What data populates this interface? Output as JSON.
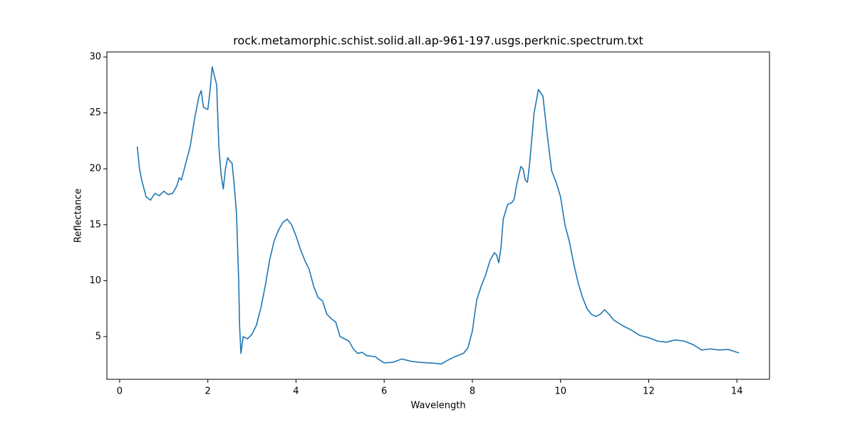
{
  "chart_data": {
    "type": "line",
    "title": "rock.metamorphic.schist.solid.all.ap-961-197.usgs.perknic.spectrum.txt",
    "x_label": "Wavelength",
    "y_label": "Reflectance",
    "x": [
      0.4,
      0.45,
      0.5,
      0.6,
      0.7,
      0.8,
      0.9,
      1.0,
      1.1,
      1.2,
      1.3,
      1.35,
      1.4,
      1.5,
      1.6,
      1.7,
      1.8,
      1.85,
      1.9,
      2.0,
      2.05,
      2.1,
      2.15,
      2.2,
      2.25,
      2.3,
      2.35,
      2.4,
      2.45,
      2.5,
      2.55,
      2.6,
      2.65,
      2.7,
      2.72,
      2.75,
      2.8,
      2.9,
      3.0,
      3.1,
      3.2,
      3.3,
      3.4,
      3.5,
      3.6,
      3.7,
      3.8,
      3.9,
      4.0,
      4.1,
      4.2,
      4.3,
      4.4,
      4.5,
      4.6,
      4.7,
      4.8,
      4.9,
      5.0,
      5.1,
      5.2,
      5.3,
      5.4,
      5.5,
      5.6,
      5.8,
      5.9,
      6.0,
      6.2,
      6.4,
      6.6,
      6.8,
      7.0,
      7.2,
      7.3,
      7.4,
      7.6,
      7.8,
      7.9,
      8.0,
      8.1,
      8.2,
      8.3,
      8.4,
      8.5,
      8.55,
      8.6,
      8.65,
      8.7,
      8.8,
      8.9,
      8.95,
      9.0,
      9.1,
      9.15,
      9.2,
      9.25,
      9.3,
      9.4,
      9.5,
      9.6,
      9.7,
      9.8,
      9.9,
      10.0,
      10.1,
      10.2,
      10.3,
      10.4,
      10.5,
      10.6,
      10.7,
      10.8,
      10.9,
      11.0,
      11.1,
      11.2,
      11.4,
      11.6,
      11.8,
      12.0,
      12.2,
      12.4,
      12.6,
      12.8,
      13.0,
      13.2,
      13.4,
      13.6,
      13.8,
      14.0,
      14.05
    ],
    "series": [
      {
        "name": "spectrum",
        "color": "#1f77b4",
        "values": [
          22,
          20,
          19,
          17.5,
          17.2,
          17.8,
          17.6,
          18.0,
          17.7,
          17.8,
          18.5,
          19.2,
          19.0,
          20.5,
          22,
          24.5,
          26.5,
          27,
          25.5,
          25.3,
          27,
          29.1,
          28.3,
          27.5,
          22,
          19.5,
          18.2,
          20,
          21,
          20.7,
          20.5,
          18.5,
          16,
          10,
          6,
          3.5,
          5,
          4.8,
          5.2,
          6,
          7.5,
          9.5,
          11.8,
          13.5,
          14.5,
          15.2,
          15.5,
          15.0,
          14,
          12.8,
          11.8,
          11,
          9.5,
          8.5,
          8.2,
          7,
          6.6,
          6.3,
          5,
          4.8,
          4.6,
          3.9,
          3.5,
          3.6,
          3.3,
          3.2,
          2.9,
          2.65,
          2.7,
          3.0,
          2.8,
          2.7,
          2.65,
          2.6,
          2.55,
          2.8,
          3.2,
          3.5,
          4,
          5.5,
          8.3,
          9.5,
          10.5,
          11.8,
          12.5,
          12.3,
          11.6,
          13,
          15.5,
          16.8,
          17.0,
          17.3,
          18.5,
          20.2,
          20,
          19,
          18.8,
          20.5,
          25,
          27.1,
          26.5,
          23,
          19.8,
          18.8,
          17.5,
          15,
          13.5,
          11.5,
          9.8,
          8.5,
          7.5,
          7,
          6.8,
          7,
          7.4,
          7.0,
          6.5,
          6.0,
          5.6,
          5.1,
          4.9,
          4.6,
          4.5,
          4.7,
          4.6,
          4.3,
          3.8,
          3.9,
          3.8,
          3.85,
          3.6,
          3.55
        ]
      }
    ],
    "xlim": [
      -0.29,
      14.74
    ],
    "ylim": [
      1.18,
      30.45
    ],
    "xticks": [
      0,
      2,
      4,
      6,
      8,
      10,
      12,
      14
    ],
    "yticks": [
      5,
      10,
      15,
      20,
      25,
      30
    ],
    "grid": false
  }
}
